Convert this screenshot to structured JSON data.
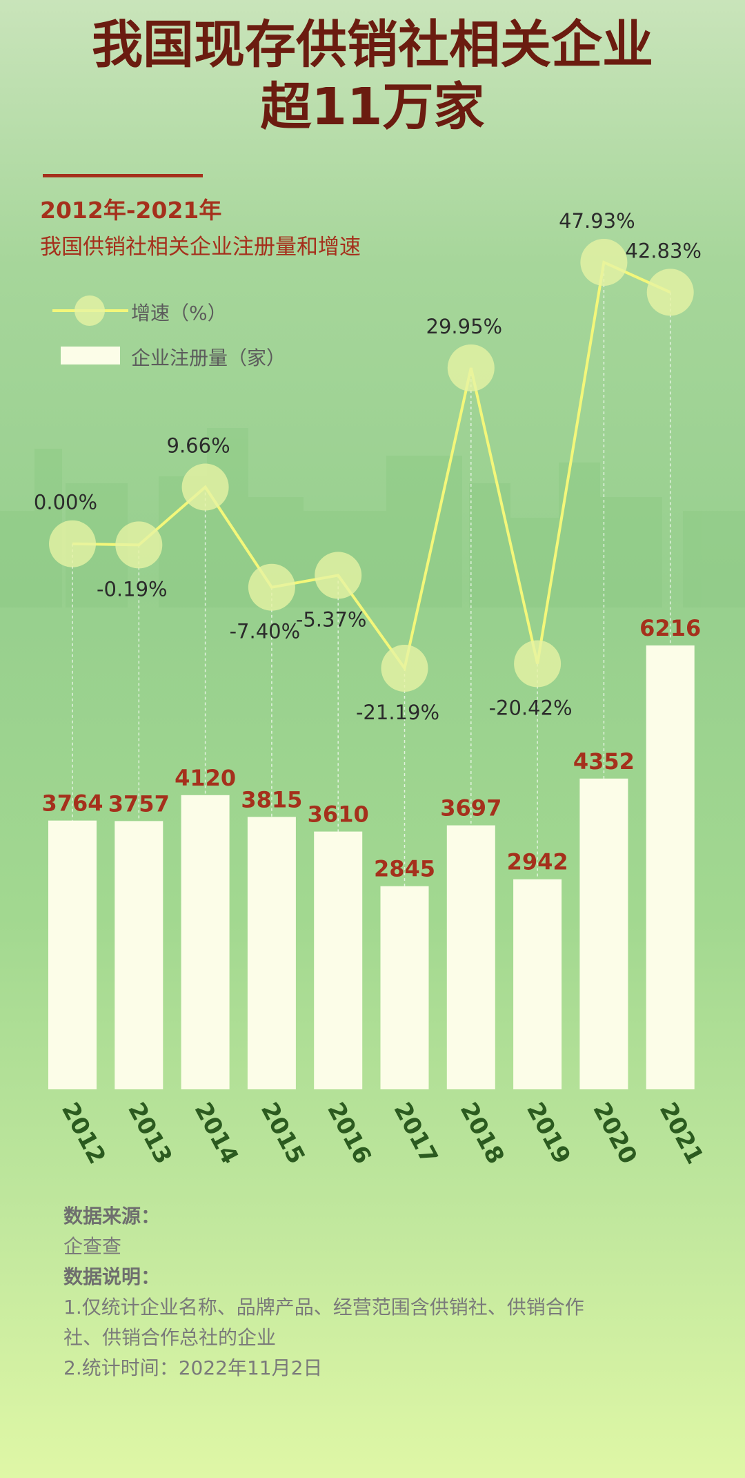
{
  "header": {
    "title_line1": "我国现存供销社相关企业",
    "title_line2": "超11万家"
  },
  "subtitle": {
    "years": "2012年-2021年",
    "description": "我国供销社相关企业注册量和增速"
  },
  "legend": {
    "growth_label": "增速（%）",
    "count_label": "企业注册量（家）"
  },
  "colors": {
    "title": "#6b1c10",
    "accent": "#a5301c",
    "bar": "#fcfde8",
    "line": "#f3f77a",
    "bubble": "#e6f3a4"
  },
  "chart_data": {
    "type": "bar",
    "categories": [
      "2012",
      "2013",
      "2014",
      "2015",
      "2016",
      "2017",
      "2018",
      "2019",
      "2020",
      "2021"
    ],
    "series": [
      {
        "name": "企业注册量（家）",
        "type": "bar",
        "values": [
          3764,
          3757,
          4120,
          3815,
          3610,
          2845,
          3697,
          2942,
          4352,
          6216
        ]
      },
      {
        "name": "增速（%）",
        "type": "line",
        "values": [
          0.0,
          -0.19,
          9.66,
          -7.4,
          -5.37,
          -21.19,
          29.95,
          -20.42,
          47.93,
          42.83
        ]
      }
    ],
    "bar_labels": [
      "3764",
      "3757",
      "4120",
      "3815",
      "3610",
      "2845",
      "3697",
      "2942",
      "4352",
      "6216"
    ],
    "line_labels": [
      "0.00%",
      "-0.19%",
      "9.66%",
      "-7.40%",
      "-5.37%",
      "-21.19%",
      "29.95%",
      "-20.42%",
      "47.93%",
      "42.83%"
    ],
    "bar_ylim": [
      0,
      6216
    ],
    "line_ylim": [
      -21.19,
      47.93
    ],
    "grid": false,
    "legend_position": "top-left"
  },
  "notes": {
    "source_heading": "数据来源：",
    "source": "企查查",
    "explain_heading": "数据说明：",
    "item1_line1": "1.仅统计企业名称、品牌产品、经营范围含供销社、供销合作",
    "item1_line2": "社、供销合作总社的企业",
    "item2": "2.统计时间：2022年11月2日"
  }
}
